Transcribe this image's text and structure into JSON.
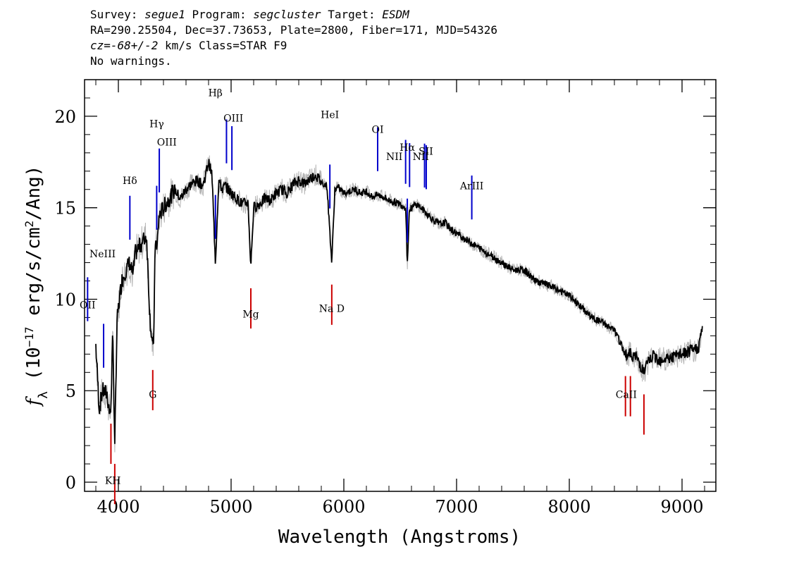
{
  "header": {
    "line1": {
      "survey_label": "Survey:",
      "survey": "segue1",
      "program_label": "Program:",
      "program": "segcluster",
      "target_label": "Target:",
      "target": "ESDM"
    },
    "line2": "RA=290.25504, Dec=37.73653, Plate=2800, Fiber=171, MJD=54326",
    "line3": {
      "cz_symbol": "cz",
      "cz_value": "=-68+/-2",
      "cz_unit": "km/s",
      "class": "Class=STAR F9"
    },
    "line4": "No warnings."
  },
  "chart_data": {
    "type": "line",
    "title": "",
    "xlabel": "Wavelength (Angstroms)",
    "ylabel": "f_λ (10^-17 erg/s/cm^2/Ang)",
    "ylabel_parts": {
      "f": "f",
      "sub": "λ",
      "pre": " (10",
      "exp": "−17",
      "mid": " erg/s/cm",
      "exp2": "2",
      "post": "/Ang)"
    },
    "xlim": [
      3700,
      9300
    ],
    "ylim": [
      -0.5,
      22
    ],
    "xticks": [
      4000,
      5000,
      6000,
      7000,
      8000,
      9000
    ],
    "yticks": [
      0,
      5,
      10,
      15,
      20
    ],
    "series": [
      {
        "color": "#000000",
        "role": "flux",
        "x": [
          3800,
          3830,
          3860,
          3900,
          3930,
          3950,
          3968,
          3990,
          4030,
          4060,
          4100,
          4130,
          4150,
          4200,
          4250,
          4280,
          4310,
          4330,
          4340,
          4360,
          4400,
          4450,
          4500,
          4550,
          4600,
          4650,
          4700,
          4750,
          4800,
          4830,
          4861,
          4890,
          4920,
          4950,
          5000,
          5050,
          5100,
          5150,
          5175,
          5200,
          5250,
          5300,
          5350,
          5400,
          5450,
          5500,
          5550,
          5600,
          5650,
          5700,
          5750,
          5800,
          5850,
          5893,
          5920,
          5950,
          6000,
          6050,
          6100,
          6150,
          6200,
          6250,
          6300,
          6350,
          6400,
          6450,
          6500,
          6550,
          6563,
          6580,
          6600,
          6650,
          6700,
          6750,
          6800,
          6850,
          6900,
          6950,
          7000,
          7050,
          7100,
          7150,
          7200,
          7300,
          7400,
          7500,
          7600,
          7700,
          7800,
          7900,
          8000,
          8100,
          8200,
          8300,
          8400,
          8498,
          8542,
          8600,
          8662,
          8700,
          8750,
          8800,
          8900,
          9000,
          9100,
          9150,
          9180
        ],
        "values": [
          7.5,
          4.0,
          5.0,
          4.8,
          3.5,
          8.0,
          2.2,
          9.0,
          11.0,
          11.5,
          12.0,
          11.3,
          12.5,
          13.0,
          13.5,
          9.0,
          7.0,
          13.8,
          12.5,
          14.5,
          15.0,
          15.5,
          16.0,
          15.5,
          16.0,
          16.3,
          16.5,
          16.2,
          17.5,
          16.8,
          12.0,
          16.5,
          16.0,
          16.2,
          15.8,
          15.5,
          15.2,
          15.3,
          11.8,
          15.0,
          15.2,
          15.5,
          15.4,
          15.8,
          16.0,
          15.8,
          16.3,
          16.5,
          16.3,
          16.6,
          16.8,
          16.4,
          16.2,
          12.0,
          16.0,
          16.1,
          15.8,
          15.9,
          16.0,
          15.8,
          15.9,
          15.6,
          15.7,
          15.6,
          15.4,
          15.3,
          15.2,
          15.0,
          11.8,
          14.8,
          15.0,
          15.2,
          14.9,
          14.6,
          14.3,
          14.1,
          14.2,
          13.8,
          13.6,
          13.4,
          13.2,
          13.0,
          12.8,
          12.4,
          12.0,
          11.6,
          11.6,
          11.0,
          10.8,
          10.5,
          10.2,
          9.6,
          9.0,
          8.7,
          8.3,
          7.0,
          7.0,
          6.8,
          6.0,
          6.6,
          6.9,
          6.7,
          6.8,
          7.0,
          7.2,
          7.4,
          8.5
        ]
      },
      {
        "color": "#b4b4b4",
        "role": "error-envelope",
        "values": []
      }
    ],
    "lines": [
      {
        "label": "OII",
        "x": 3727,
        "color": "#0000cc"
      },
      {
        "label": "NeIII",
        "x": 3869,
        "color": "#0000cc"
      },
      {
        "label": "K",
        "x": 3934,
        "color": "#cc0000"
      },
      {
        "label": "H",
        "x": 3968,
        "color": "#cc0000"
      },
      {
        "label": "Hδ",
        "x": 4102,
        "color": "#0000cc"
      },
      {
        "label": "G",
        "x": 4305,
        "color": "#cc0000"
      },
      {
        "label": "Hγ",
        "x": 4340,
        "color": "#0000cc"
      },
      {
        "label": "OIII",
        "x": 4363,
        "color": "#0000cc"
      },
      {
        "label": "Hβ",
        "x": 4861,
        "color": "#0000cc"
      },
      {
        "label": "OIII",
        "x": 4959,
        "color": "#0000cc"
      },
      {
        "label": "OIII",
        "x": 5007,
        "color": "#0000cc"
      },
      {
        "label": "Mg",
        "x": 5175,
        "color": "#cc0000"
      },
      {
        "label": "HeI",
        "x": 5876,
        "color": "#0000cc"
      },
      {
        "label": "Na D",
        "x": 5893,
        "color": "#cc0000"
      },
      {
        "label": "OI",
        "x": 6300,
        "color": "#0000cc"
      },
      {
        "label": "NII",
        "x": 6548,
        "color": "#0000cc"
      },
      {
        "label": "Hα",
        "x": 6563,
        "color": "#0000cc"
      },
      {
        "label": "NII",
        "x": 6583,
        "color": "#0000cc"
      },
      {
        "label": "SII",
        "x": 6716,
        "color": "#0000cc"
      },
      {
        "label": "SII",
        "x": 6731,
        "color": "#0000cc"
      },
      {
        "label": "ArIII",
        "x": 7135,
        "color": "#0000cc"
      },
      {
        "label": "CaII",
        "x": 8498,
        "color": "#cc0000"
      },
      {
        "label": "CaII",
        "x": 8542,
        "color": "#cc0000"
      },
      {
        "label": "CaII",
        "x": 8662,
        "color": "#cc0000"
      }
    ],
    "annotations": [
      {
        "text": "OII",
        "x": 3727,
        "y": 9.5
      },
      {
        "text": "NeIII",
        "x": 3860,
        "y": 12.3
      },
      {
        "text": "KH",
        "x": 3951,
        "y": -0.1
      },
      {
        "text": "Hδ",
        "x": 4102,
        "y": 16.3
      },
      {
        "text": "G",
        "x": 4305,
        "y": 4.6
      },
      {
        "text": "Hγ",
        "x": 4340,
        "y": 19.4
      },
      {
        "text": "OIII",
        "x": 4430,
        "y": 18.4
      },
      {
        "text": "Hβ",
        "x": 4861,
        "y": 21.1
      },
      {
        "text": "OIII",
        "x": 5020,
        "y": 19.7
      },
      {
        "text": "Mg",
        "x": 5175,
        "y": 9.0
      },
      {
        "text": "HeI",
        "x": 5876,
        "y": 19.9
      },
      {
        "text": "Na  D",
        "x": 5893,
        "y": 9.3
      },
      {
        "text": "OI",
        "x": 6300,
        "y": 19.1
      },
      {
        "text": "NII",
        "x": 6448,
        "y": 17.6
      },
      {
        "text": "Hα",
        "x": 6563,
        "y": 18.1
      },
      {
        "text": "NII",
        "x": 6683,
        "y": 17.6
      },
      {
        "text": "SII",
        "x": 6728,
        "y": 17.9
      },
      {
        "text": "ArIII",
        "x": 7135,
        "y": 16.0
      },
      {
        "text": "CaII",
        "x": 8505,
        "y": 4.6
      }
    ],
    "legend": "none",
    "grid": false
  }
}
